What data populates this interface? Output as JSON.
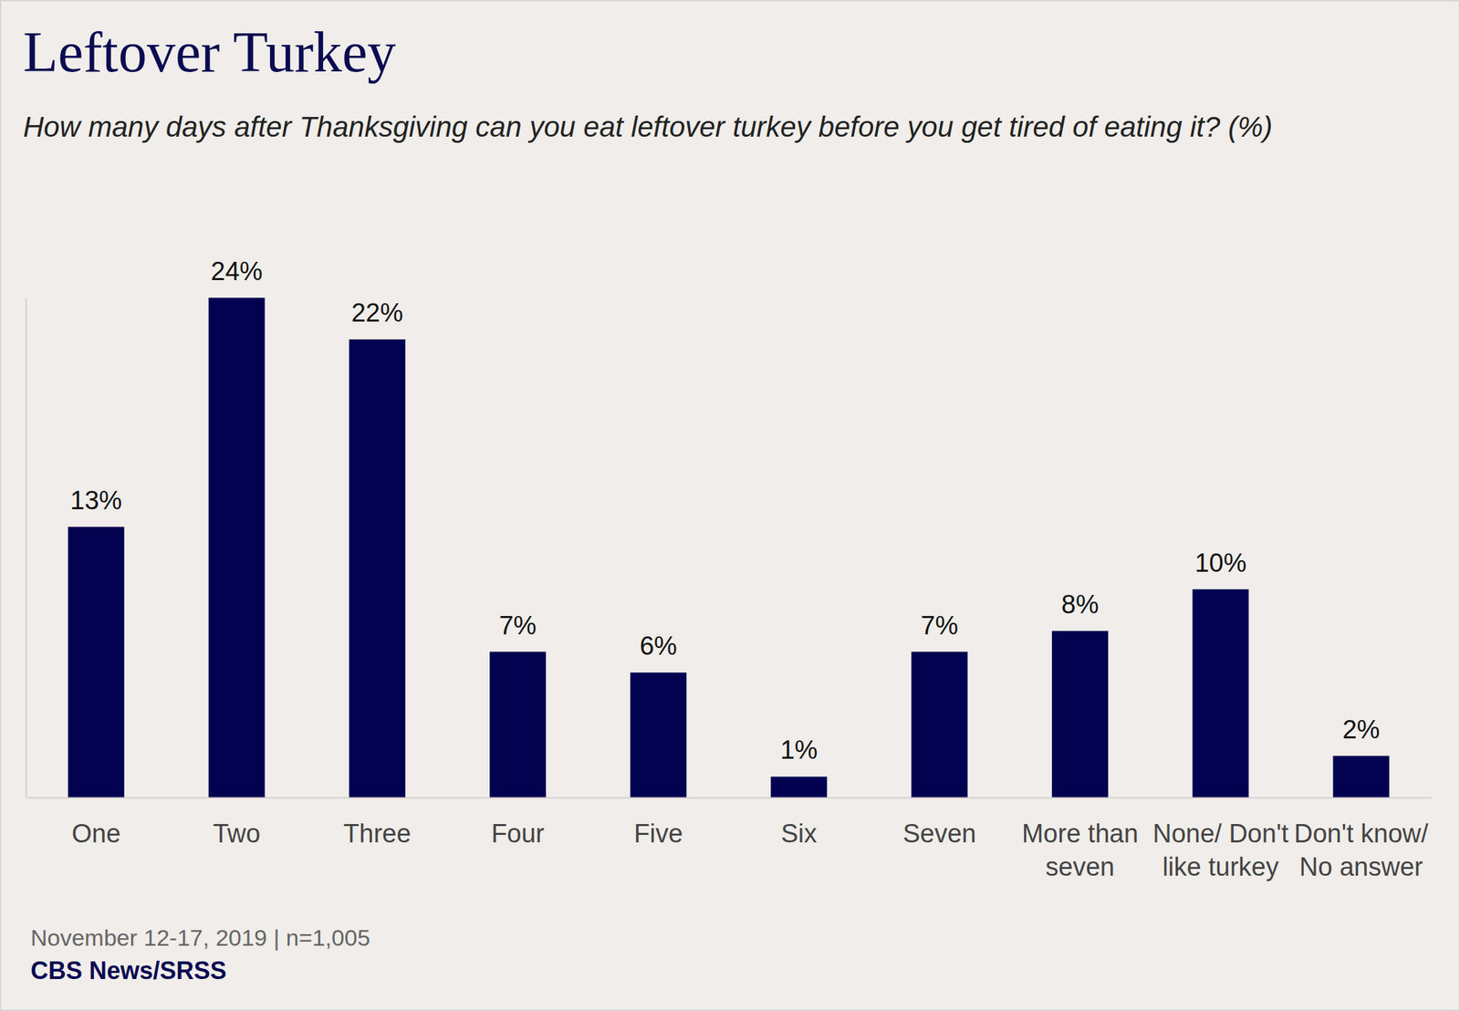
{
  "chart_data": {
    "type": "bar",
    "title": "Leftover Turkey",
    "subtitle": "How many days after Thanksgiving can you eat leftover turkey before you get tired of eating it? (%)",
    "categories": [
      "One",
      "Two",
      "Three",
      "Four",
      "Five",
      "Six",
      "Seven",
      "More than seven",
      "None/ Don't like turkey",
      "Don't know/ No answer"
    ],
    "values": [
      13,
      24,
      22,
      7,
      6,
      1,
      7,
      8,
      10,
      2
    ],
    "value_labels": [
      "13%",
      "24%",
      "22%",
      "7%",
      "6%",
      "1%",
      "7%",
      "8%",
      "10%",
      "2%"
    ],
    "color": "#020251",
    "ylim": [
      0,
      24
    ],
    "yticks": [],
    "tick_labels": "x",
    "data_labels": true,
    "grid": false,
    "note": "November 12-17, 2019 | n=1,005",
    "source": "CBS News/SRSS"
  }
}
